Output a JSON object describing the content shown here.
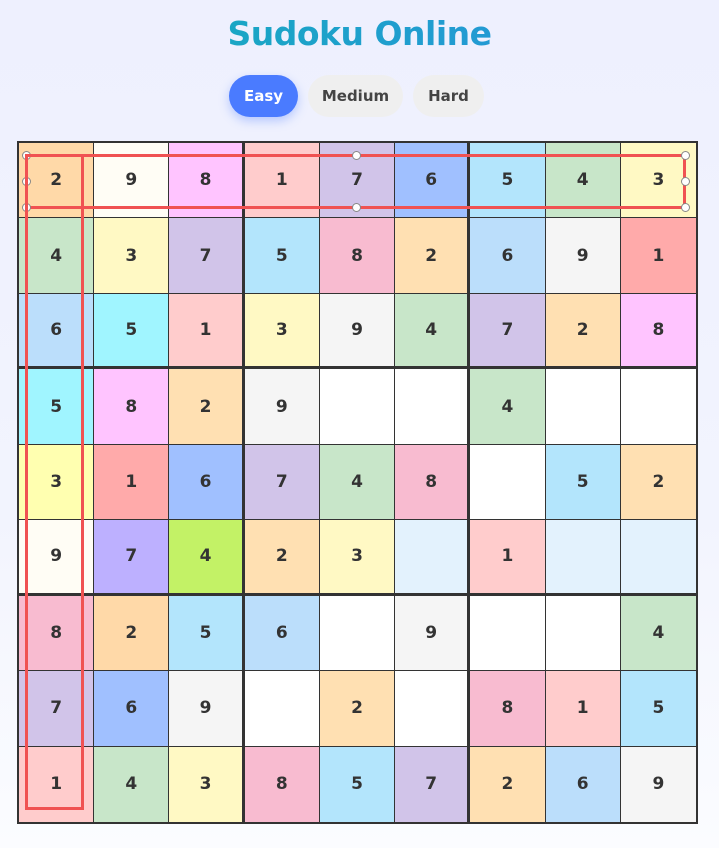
{
  "title": "Sudoku Online",
  "difficulty": {
    "options": [
      "Easy",
      "Medium",
      "Hard"
    ],
    "selected": "Easy",
    "active_color": "#4a7bff"
  },
  "board": {
    "values": [
      [
        "2",
        "9",
        "8",
        "1",
        "7",
        "6",
        "5",
        "4",
        "3"
      ],
      [
        "4",
        "3",
        "7",
        "5",
        "8",
        "2",
        "6",
        "9",
        "1"
      ],
      [
        "6",
        "5",
        "1",
        "3",
        "9",
        "4",
        "7",
        "2",
        "8"
      ],
      [
        "5",
        "8",
        "2",
        "9",
        "",
        "",
        "4",
        "",
        ""
      ],
      [
        "3",
        "1",
        "6",
        "7",
        "4",
        "8",
        "",
        "5",
        "2"
      ],
      [
        "9",
        "7",
        "4",
        "2",
        "3",
        "",
        "1",
        "",
        ""
      ],
      [
        "8",
        "2",
        "5",
        "6",
        "",
        "9",
        "",
        "",
        "4"
      ],
      [
        "7",
        "6",
        "9",
        "",
        "2",
        "",
        "8",
        "1",
        "5"
      ],
      [
        "1",
        "4",
        "3",
        "8",
        "5",
        "7",
        "2",
        "6",
        "9"
      ]
    ],
    "colors": [
      [
        "#ffd9a8",
        "#fffdf5",
        "#ffc4ff",
        "#ffcccc",
        "#d1c4e9",
        "#a0c0ff",
        "#b3e5fc",
        "#c8e6c9",
        "#fff9c4"
      ],
      [
        "#c8e6c9",
        "#fff9c4",
        "#d1c4e9",
        "#b3e5fc",
        "#f8bbd0",
        "#ffe0b2",
        "#bbdefb",
        "#f5f5f5",
        "#ffaaaa"
      ],
      [
        "#bbdefb",
        "#a0f5ff",
        "#ffcccc",
        "#fff9c4",
        "#f5f5f5",
        "#c8e6c9",
        "#d1c4e9",
        "#ffe0b2",
        "#ffc4ff"
      ],
      [
        "#a0f5ff",
        "#ffc4ff",
        "#ffe0b2",
        "#f5f5f5",
        "#ffffff",
        "#ffffff",
        "#c8e6c9",
        "#ffffff",
        "#ffffff"
      ],
      [
        "#ffffb0",
        "#ffaaaa",
        "#a0c0ff",
        "#d1c4e9",
        "#c8e6c9",
        "#f8bbd0",
        "#ffffff",
        "#b3e5fc",
        "#ffe0b2"
      ],
      [
        "#fffdf5",
        "#bdb0ff",
        "#c3f266",
        "#ffe0b2",
        "#fff9c4",
        "#e3f2fd",
        "#ffcccc",
        "#e3f2fd",
        "#e3f2fd"
      ],
      [
        "#f8bbd0",
        "#ffd9a8",
        "#b3e5fc",
        "#bbdefb",
        "#ffffff",
        "#f5f5f5",
        "#ffffff",
        "#ffffff",
        "#c8e6c9"
      ],
      [
        "#d1c4e9",
        "#a0c0ff",
        "#f5f5f5",
        "#ffffff",
        "#ffe0b2",
        "#ffffff",
        "#f8bbd0",
        "#ffcccc",
        "#b3e5fc"
      ],
      [
        "#ffcccc",
        "#c8e6c9",
        "#fff9c4",
        "#f8bbd0",
        "#b3e5fc",
        "#d1c4e9",
        "#ffe0b2",
        "#bbdefb",
        "#f5f5f5"
      ]
    ]
  },
  "highlight_color": "#f05252"
}
